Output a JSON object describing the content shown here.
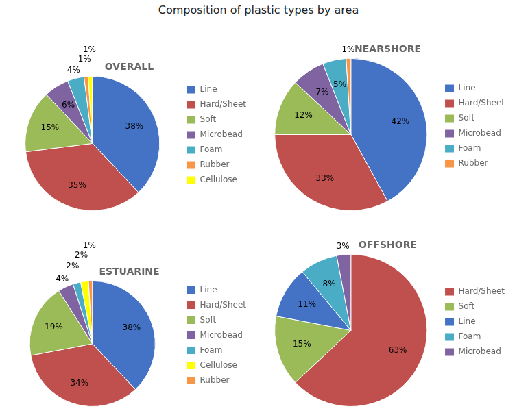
{
  "title": "Composition of plastic types by area",
  "chart_data": [
    {
      "type": "pie",
      "title": "OVERALL",
      "categories": [
        "Line",
        "Hard/Sheet",
        "Soft",
        "Microbead",
        "Foam",
        "Rubber",
        "Cellulose"
      ],
      "values": [
        38,
        35,
        15,
        6,
        4,
        1,
        1
      ],
      "value_labels": [
        "38%",
        "35%",
        "15%",
        "6%",
        "4%",
        "1%",
        "1%"
      ],
      "colors": [
        "#4472C4",
        "#C0504D",
        "#9BBB59",
        "#8064A2",
        "#4BACC6",
        "#F79646",
        "#FFFF00"
      ],
      "data_labels": true,
      "legend": "right"
    },
    {
      "type": "pie",
      "title": "NEARSHORE",
      "categories": [
        "Line",
        "Hard/Sheet",
        "Soft",
        "Microbead",
        "Foam",
        "Rubber"
      ],
      "values": [
        42,
        33,
        12,
        7,
        5,
        1
      ],
      "value_labels": [
        "42%",
        "33%",
        "12%",
        "7%",
        "5%",
        "1%"
      ],
      "colors": [
        "#4472C4",
        "#C0504D",
        "#9BBB59",
        "#8064A2",
        "#4BACC6",
        "#F79646"
      ],
      "data_labels": true,
      "legend": "right"
    },
    {
      "type": "pie",
      "title": "ESTUARINE",
      "categories": [
        "Line",
        "Hard/Sheet",
        "Soft",
        "Microbead",
        "Foam",
        "Cellulose",
        "Rubber"
      ],
      "values": [
        38,
        34,
        19,
        4,
        2,
        2,
        1
      ],
      "value_labels": [
        "38%",
        "34%",
        "19%",
        "4%",
        "2%",
        "2%",
        "1%"
      ],
      "colors": [
        "#4472C4",
        "#C0504D",
        "#9BBB59",
        "#8064A2",
        "#4BACC6",
        "#FFFF00",
        "#F79646"
      ],
      "data_labels": true,
      "legend": "right"
    },
    {
      "type": "pie",
      "title": "OFFSHORE",
      "categories": [
        "Hard/Sheet",
        "Soft",
        "Line",
        "Foam",
        "Microbead"
      ],
      "values": [
        63,
        15,
        11,
        8,
        3
      ],
      "value_labels": [
        "63%",
        "15%",
        "11%",
        "8%",
        "3%"
      ],
      "colors": [
        "#C0504D",
        "#9BBB59",
        "#4472C4",
        "#4BACC6",
        "#8064A2"
      ],
      "data_labels": true,
      "legend": "right"
    }
  ]
}
